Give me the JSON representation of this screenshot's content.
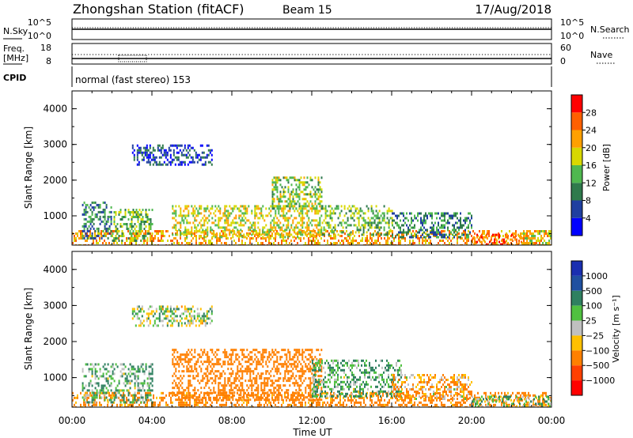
{
  "header": {
    "title": "Zhongshan Station (fitACF)",
    "beam": "Beam 15",
    "date": "17/Aug/2018"
  },
  "noise_panel": {
    "left_label": "N.Sky",
    "left_ticks": [
      "10^5",
      "10^0"
    ],
    "right_label": "N.Search",
    "right_ticks": [
      "10^5",
      "10^0"
    ]
  },
  "freq_panel": {
    "left_label_1": "Freq.",
    "left_label_2": "[MHz]",
    "left_ticks": [
      "18",
      "8"
    ],
    "right_label": "Nave",
    "right_ticks": [
      "60",
      "0"
    ]
  },
  "cpid_panel": {
    "label": "CPID",
    "text": "normal (fast stereo) 153"
  },
  "x_axis": {
    "title": "Time UT",
    "ticks": [
      "00:00",
      "04:00",
      "08:00",
      "12:00",
      "16:00",
      "20:00",
      "00:00"
    ]
  },
  "power_panel": {
    "ylabel": "Slant Range [km]",
    "yticks": [
      "4000",
      "3000",
      "2000",
      "1000"
    ],
    "colorbar_label": "Power [dB]",
    "colorbar_ticks": [
      "28",
      "24",
      "20",
      "16",
      "12",
      "8",
      "4"
    ],
    "colors": [
      "#0000ff",
      "#1f3fa0",
      "#2f7a4c",
      "#4fb84f",
      "#d8d800",
      "#ffa000",
      "#ff6000",
      "#ff0000"
    ]
  },
  "velocity_panel": {
    "ylabel": "Slant Range [km]",
    "yticks": [
      "4000",
      "3000",
      "2000",
      "1000"
    ],
    "colorbar_label": "Velocity [m s⁻¹]",
    "colorbar_ticks": [
      "1000",
      "500",
      "100",
      "25",
      "−25",
      "−100",
      "−500",
      "−1000"
    ],
    "colors": [
      "#1a2fb0",
      "#2050a0",
      "#2f8060",
      "#50c040",
      "#c0c0c0",
      "#ffc000",
      "#ff8000",
      "#ff4000",
      "#ff0000"
    ]
  },
  "chart_data": {
    "type": "heatmap",
    "x_range_hours": [
      0,
      24
    ],
    "y_range_km": [
      180,
      4500
    ],
    "power_clusters": [
      {
        "t": [
          0.0,
          24.0
        ],
        "r": [
          180,
          600
        ],
        "power_db": 22
      },
      {
        "t": [
          0.5,
          2.0
        ],
        "r": [
          400,
          1400
        ],
        "power_db": 10
      },
      {
        "t": [
          2.0,
          4.0
        ],
        "r": [
          300,
          1200
        ],
        "power_db": 14
      },
      {
        "t": [
          3.0,
          7.0
        ],
        "r": [
          2450,
          3000
        ],
        "power_db": 6
      },
      {
        "t": [
          5.0,
          12.5
        ],
        "r": [
          400,
          1300
        ],
        "power_db": 18
      },
      {
        "t": [
          10.0,
          12.5
        ],
        "r": [
          1200,
          2100
        ],
        "power_db": 16
      },
      {
        "t": [
          12.5,
          16.0
        ],
        "r": [
          500,
          1300
        ],
        "power_db": 14
      },
      {
        "t": [
          16.0,
          20.0
        ],
        "r": [
          400,
          1100
        ],
        "power_db": 10
      },
      {
        "t": [
          20.0,
          22.5
        ],
        "r": [
          180,
          500
        ],
        "power_db": 26
      },
      {
        "t": [
          22.5,
          24.0
        ],
        "r": [
          180,
          600
        ],
        "power_db": 18
      }
    ],
    "velocity_clusters": [
      {
        "t": [
          0.0,
          24.0
        ],
        "r": [
          180,
          600
        ],
        "velocity": -200
      },
      {
        "t": [
          0.5,
          4.0
        ],
        "r": [
          300,
          1400
        ],
        "velocity": 100
      },
      {
        "t": [
          3.0,
          7.0
        ],
        "r": [
          2450,
          3000
        ],
        "velocity": 25
      },
      {
        "t": [
          5.0,
          12.5
        ],
        "r": [
          400,
          1800
        ],
        "velocity": -300
      },
      {
        "t": [
          12.0,
          16.5
        ],
        "r": [
          500,
          1500
        ],
        "velocity": 100
      },
      {
        "t": [
          16.0,
          20.0
        ],
        "r": [
          400,
          1100
        ],
        "velocity": -100
      },
      {
        "t": [
          20.0,
          24.0
        ],
        "r": [
          180,
          500
        ],
        "velocity": 50
      }
    ]
  }
}
